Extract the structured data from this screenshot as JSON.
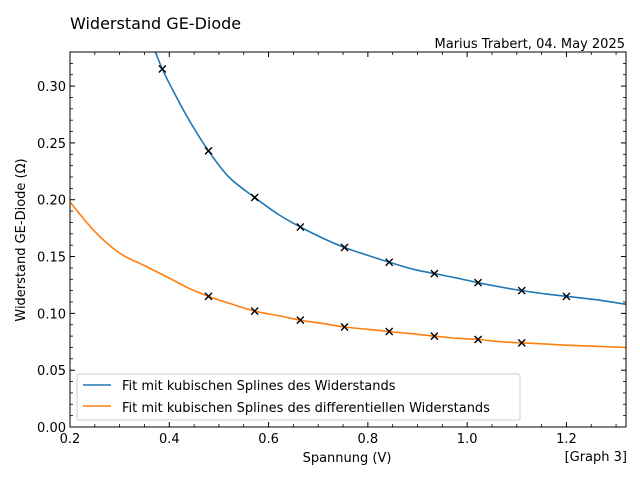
{
  "figure": {
    "title": "Widerstand GE-Diode",
    "author_note": "Marius Trabert, 04. May 2025",
    "graph_label": "[Graph 3]"
  },
  "chart_data": {
    "type": "line",
    "title": "Widerstand GE-Diode",
    "xlabel": "Spannung (V)",
    "ylabel": "Widerstand GE-Diode (Ω)",
    "xlim": [
      0.2,
      1.32
    ],
    "ylim": [
      0.0,
      0.33
    ],
    "xticks": [
      0.2,
      0.4,
      0.6,
      0.8,
      1.0,
      1.2
    ],
    "xtick_labels": [
      "0.2",
      "0.4",
      "0.6",
      "0.8",
      "1.0",
      "1.2"
    ],
    "yticks": [
      0.0,
      0.05,
      0.1,
      0.15,
      0.2,
      0.25,
      0.3
    ],
    "ytick_labels": [
      "0.00",
      "0.05",
      "0.10",
      "0.15",
      "0.20",
      "0.25",
      "0.30"
    ],
    "grid": false,
    "legend_position": "lower-left",
    "series": [
      {
        "name": "Fit mit kubischen Splines des Widerstands",
        "color": "#1f77b4",
        "x": [
          0.355,
          0.37,
          0.386,
          0.41,
          0.44,
          0.479,
          0.52,
          0.572,
          0.62,
          0.664,
          0.71,
          0.753,
          0.8,
          0.843,
          0.89,
          0.934,
          0.98,
          1.022,
          1.07,
          1.11,
          1.16,
          1.2,
          1.26,
          1.32
        ],
        "y": [
          0.345,
          0.332,
          0.315,
          0.294,
          0.27,
          0.243,
          0.22,
          0.202,
          0.187,
          0.176,
          0.166,
          0.158,
          0.151,
          0.145,
          0.139,
          0.135,
          0.131,
          0.127,
          0.123,
          0.12,
          0.117,
          0.115,
          0.112,
          0.108
        ]
      },
      {
        "name": "Fit mit kubischen Splines des differentiellen Widerstands",
        "color": "#ff7f0e",
        "x": [
          0.2,
          0.25,
          0.3,
          0.35,
          0.4,
          0.44,
          0.479,
          0.52,
          0.572,
          0.62,
          0.664,
          0.71,
          0.753,
          0.8,
          0.843,
          0.89,
          0.934,
          0.98,
          1.022,
          1.07,
          1.11,
          1.16,
          1.2,
          1.26,
          1.32
        ],
        "y": [
          0.198,
          0.172,
          0.153,
          0.142,
          0.131,
          0.122,
          0.115,
          0.109,
          0.102,
          0.098,
          0.094,
          0.091,
          0.088,
          0.086,
          0.084,
          0.082,
          0.08,
          0.078,
          0.077,
          0.075,
          0.074,
          0.073,
          0.072,
          0.071,
          0.07
        ]
      }
    ],
    "markers": [
      {
        "color": "#000000",
        "x": [
          0.386,
          0.479,
          0.572,
          0.664,
          0.753,
          0.843,
          0.934,
          1.022,
          1.11,
          1.2
        ],
        "y": [
          0.315,
          0.243,
          0.202,
          0.176,
          0.158,
          0.145,
          0.135,
          0.127,
          0.12,
          0.115
        ]
      },
      {
        "color": "#000000",
        "x": [
          0.479,
          0.572,
          0.664,
          0.753,
          0.843,
          0.934,
          1.022,
          1.11
        ],
        "y": [
          0.115,
          0.102,
          0.094,
          0.088,
          0.084,
          0.08,
          0.077,
          0.074
        ]
      }
    ]
  }
}
